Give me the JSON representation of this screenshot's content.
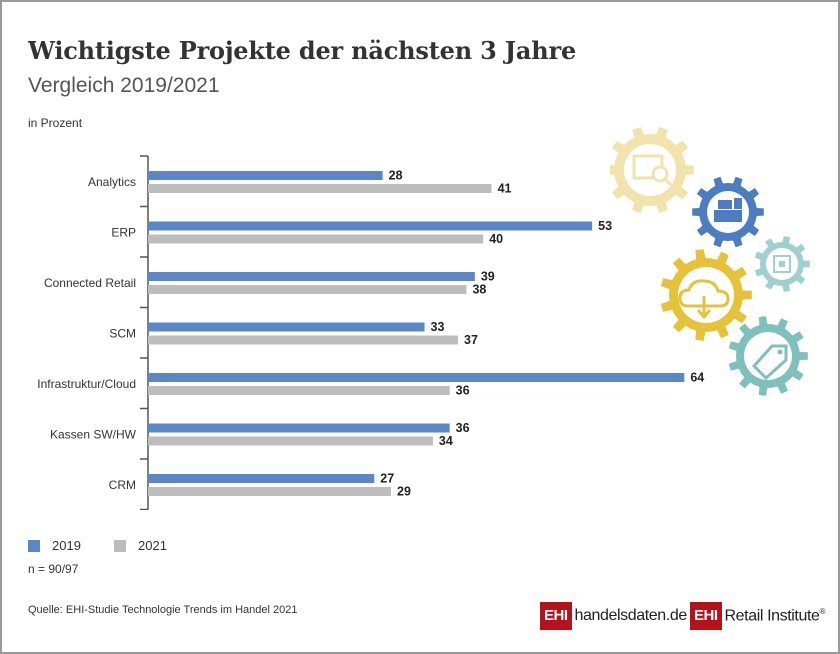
{
  "header": {
    "title": "Wichtigste Projekte der nächsten 3 Jahre",
    "subtitle": "Vergleich 2019/2021",
    "unit": "in Prozent"
  },
  "chart_data": {
    "type": "bar",
    "orientation": "horizontal",
    "title": "Wichtigste Projekte der nächsten 3 Jahre",
    "subtitle": "Vergleich 2019/2021",
    "xlabel": "in Prozent",
    "categories": [
      "Analytics",
      "ERP",
      "Connected Retail",
      "SCM",
      "Infrastruktur/Cloud",
      "Kassen SW/HW",
      "CRM"
    ],
    "series": [
      {
        "name": "2019",
        "color": "#5b87c7",
        "values": [
          28,
          53,
          39,
          33,
          64,
          36,
          27
        ]
      },
      {
        "name": "2021",
        "color": "#bdbdbd",
        "values": [
          41,
          40,
          38,
          37,
          36,
          34,
          29
        ]
      }
    ],
    "xlim": [
      0,
      64
    ],
    "grid": false,
    "data_labels": true,
    "legend_position": "bottom-left"
  },
  "legend": {
    "items": [
      {
        "label": "2019",
        "color": "#5b87c7"
      },
      {
        "label": "2021",
        "color": "#bdbdbd"
      }
    ]
  },
  "footer": {
    "n_note": "n = 90/97",
    "source": "Quelle: EHI-Studie Technologie Trends im Handel 2021",
    "logo1_box": "EHI",
    "logo1_text": "handelsdaten.de",
    "logo2_box": "EHI",
    "logo2_text": "Retail Institute",
    "logo2_reg": "®"
  },
  "icons": [
    "search-gear-icon",
    "cash-register-gear-icon",
    "chip-gear-icon",
    "cloud-download-gear-icon",
    "price-tag-gear-icon"
  ],
  "icon_colors": {
    "cream": "#f2e3ad",
    "blue": "#4d7cc1",
    "teal": "#9fd0d0",
    "yellow": "#e5c23a",
    "green": "#7fc0bd"
  }
}
